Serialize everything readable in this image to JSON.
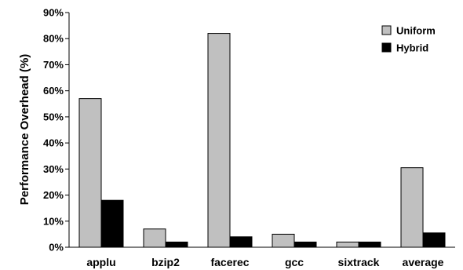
{
  "chart_data": {
    "type": "bar",
    "categories": [
      "applu",
      "bzip2",
      "facerec",
      "gcc",
      "sixtrack",
      "average"
    ],
    "series": [
      {
        "name": "Uniform",
        "color": "#c0c0c0",
        "values": [
          57,
          7,
          82,
          5,
          2,
          30.5
        ]
      },
      {
        "name": "Hybrid",
        "color": "#000000",
        "values": [
          18,
          2,
          4,
          2,
          2,
          5.5
        ]
      }
    ],
    "ylabel": "Performance Overhead (%)",
    "xlabel": "",
    "ylim": [
      0,
      90
    ],
    "yticks": [
      "0%",
      "10%",
      "20%",
      "30%",
      "40%",
      "50%",
      "60%",
      "70%",
      "80%",
      "90%"
    ],
    "grid": false,
    "legend_position": "top-right"
  }
}
